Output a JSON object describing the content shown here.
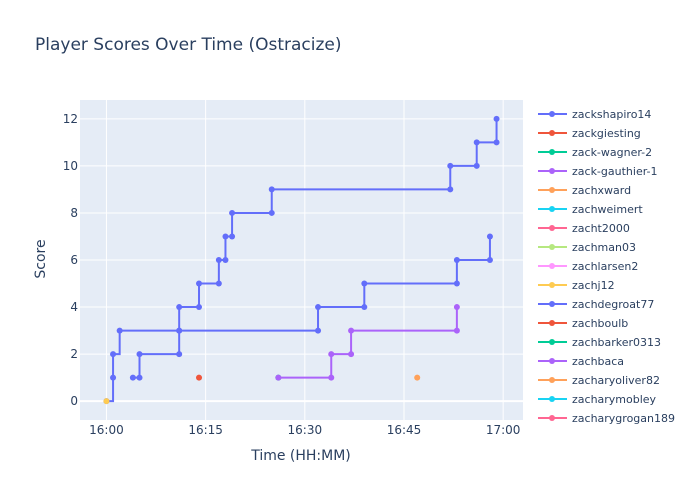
{
  "chart_data": {
    "type": "line",
    "title": "Player Scores Over Time (Ostracize)",
    "xlabel": "Time (HH:MM)",
    "ylabel": "Score",
    "x_axis_type": "time",
    "x_ticks": [
      "16:00",
      "16:15",
      "16:30",
      "16:45",
      "17:00"
    ],
    "xlim": [
      "15:56",
      "17:03"
    ],
    "ylim": [
      -0.8,
      12.8
    ],
    "y_ticks": [
      0,
      2,
      4,
      6,
      8,
      10,
      12
    ],
    "line_shape": "step",
    "grid": true,
    "legend_position": "right",
    "colors": {
      "plot_bg": "#e5ecf6",
      "grid": "#ffffff",
      "text": "#2a3f5f"
    },
    "series": [
      {
        "name": "zackshapiro14",
        "color": "#636efa",
        "points": [
          [
            "16:00",
            0
          ],
          [
            "16:01",
            1
          ],
          [
            "16:01",
            2
          ],
          [
            "16:02",
            3
          ],
          [
            "16:11",
            3
          ],
          [
            "16:11",
            4
          ],
          [
            "16:14",
            4
          ],
          [
            "16:14",
            5
          ],
          [
            "16:17",
            5
          ],
          [
            "16:17",
            6
          ],
          [
            "16:18",
            6
          ],
          [
            "16:18",
            7
          ],
          [
            "16:19",
            7
          ],
          [
            "16:19",
            8
          ],
          [
            "16:25",
            8
          ],
          [
            "16:25",
            9
          ],
          [
            "16:52",
            9
          ],
          [
            "16:52",
            10
          ],
          [
            "16:56",
            10
          ],
          [
            "16:56",
            11
          ],
          [
            "16:59",
            11
          ],
          [
            "16:59",
            12
          ]
        ]
      },
      {
        "name": "zackgiesting",
        "color": "#ef553b",
        "points": [
          [
            "16:14",
            1
          ]
        ]
      },
      {
        "name": "zack-wagner-2",
        "color": "#00cc96",
        "points": [
          [
            "16:26",
            1
          ]
        ]
      },
      {
        "name": "zack-gauthier-1",
        "color": "#ab63fa",
        "points": [
          [
            "16:26",
            1
          ],
          [
            "16:34",
            1
          ],
          [
            "16:34",
            2
          ],
          [
            "16:37",
            2
          ],
          [
            "16:37",
            3
          ],
          [
            "16:53",
            3
          ],
          [
            "16:53",
            4
          ]
        ]
      },
      {
        "name": "zachxward",
        "color": "#ffa15a",
        "points": [
          [
            "16:47",
            1
          ]
        ]
      },
      {
        "name": "zachweimert",
        "color": "#19d3f3",
        "points": []
      },
      {
        "name": "zacht2000",
        "color": "#ff6692",
        "points": []
      },
      {
        "name": "zachman03",
        "color": "#b6e880",
        "points": []
      },
      {
        "name": "zachlarsen2",
        "color": "#ff97ff",
        "points": []
      },
      {
        "name": "zachj12",
        "color": "#fecb52",
        "points": [
          [
            "16:00",
            0
          ]
        ]
      },
      {
        "name": "zachdegroat77",
        "color": "#636efa",
        "points": [
          [
            "16:04",
            1
          ],
          [
            "16:05",
            1
          ],
          [
            "16:05",
            2
          ],
          [
            "16:11",
            2
          ],
          [
            "16:11",
            3
          ],
          [
            "16:32",
            3
          ],
          [
            "16:32",
            4
          ],
          [
            "16:39",
            4
          ],
          [
            "16:39",
            5
          ],
          [
            "16:53",
            5
          ],
          [
            "16:53",
            6
          ],
          [
            "16:58",
            6
          ],
          [
            "16:58",
            7
          ]
        ]
      },
      {
        "name": "zachboulb",
        "color": "#ef553b",
        "points": []
      },
      {
        "name": "zachbarker0313",
        "color": "#00cc96",
        "points": []
      },
      {
        "name": "zachbaca",
        "color": "#ab63fa",
        "points": []
      },
      {
        "name": "zacharyoliver82",
        "color": "#ffa15a",
        "points": []
      },
      {
        "name": "zacharymobley",
        "color": "#19d3f3",
        "points": []
      },
      {
        "name": "zacharygrogan189",
        "color": "#ff6692",
        "points": []
      }
    ]
  }
}
